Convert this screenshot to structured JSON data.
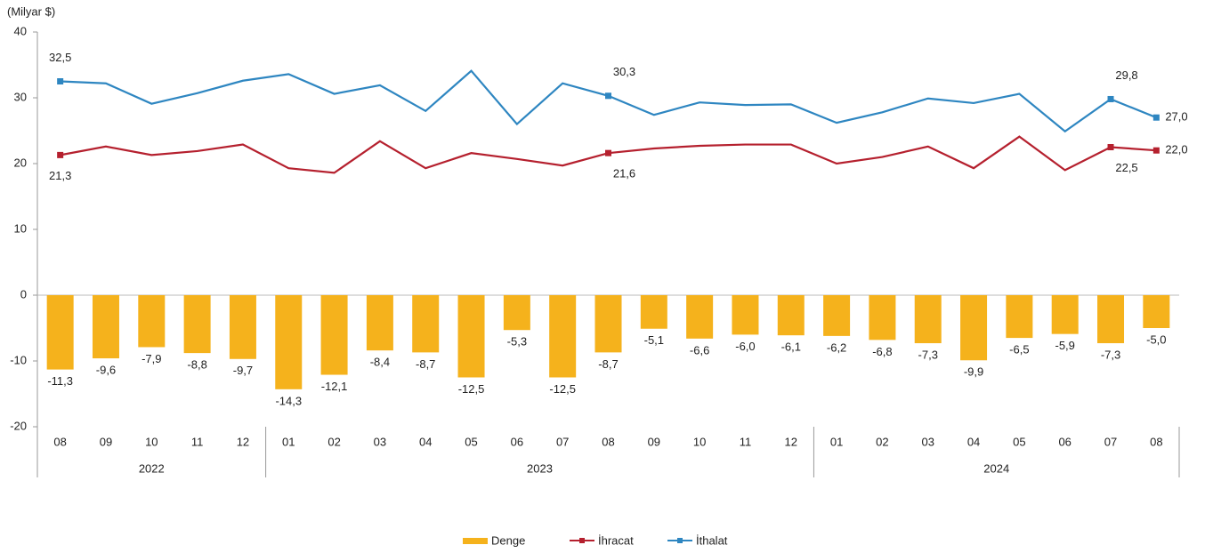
{
  "chart_data": {
    "type": "bar-line",
    "y_label": "(Milyar $)",
    "categories": [
      "08",
      "09",
      "10",
      "11",
      "12",
      "01",
      "02",
      "03",
      "04",
      "05",
      "06",
      "07",
      "08",
      "09",
      "10",
      "11",
      "12",
      "01",
      "02",
      "03",
      "04",
      "05",
      "06",
      "07",
      "08"
    ],
    "groups": [
      {
        "label": "2022",
        "count": 5
      },
      {
        "label": "2023",
        "count": 12
      },
      {
        "label": "2024",
        "count": 8
      }
    ],
    "ylim": [
      -20,
      40
    ],
    "yticks": [
      -20,
      -10,
      0,
      10,
      20,
      30,
      40
    ],
    "series": [
      {
        "name": "Denge",
        "type": "bar",
        "color": "#f5b21c",
        "values": [
          -11.3,
          -9.6,
          -7.9,
          -8.8,
          -9.7,
          -14.3,
          -12.1,
          -8.4,
          -8.7,
          -12.5,
          -5.3,
          -12.5,
          -8.7,
          -5.1,
          -6.6,
          -6.0,
          -6.1,
          -6.2,
          -6.8,
          -7.3,
          -9.9,
          -6.5,
          -5.9,
          -7.3,
          -5.0
        ],
        "value_labels": [
          "-11,3",
          "-9,6",
          "-7,9",
          "-8,8",
          "-9,7",
          "-14,3",
          "-12,1",
          "-8,4",
          "-8,7",
          "-12,5",
          "-5,3",
          "-12,5",
          "-8,7",
          "-5,1",
          "-6,6",
          "-6,0",
          "-6,1",
          "-6,2",
          "-6,8",
          "-7,3",
          "-9,9",
          "-6,5",
          "-5,9",
          "-7,3",
          "-5,0"
        ]
      },
      {
        "name": "İhracat",
        "type": "line",
        "color": "#b5202e",
        "values": [
          21.3,
          22.6,
          21.3,
          21.9,
          22.9,
          19.3,
          18.6,
          23.4,
          19.3,
          21.6,
          20.7,
          19.7,
          21.6,
          22.3,
          22.7,
          22.9,
          22.9,
          20.0,
          21.0,
          22.6,
          19.3,
          24.1,
          19.0,
          22.5,
          22.0
        ],
        "value_labels": [
          "21,3",
          null,
          null,
          null,
          null,
          null,
          null,
          null,
          null,
          null,
          null,
          null,
          "21,6",
          null,
          null,
          null,
          null,
          null,
          null,
          null,
          null,
          null,
          null,
          "22,5",
          "22,0"
        ]
      },
      {
        "name": "İthalat",
        "type": "line",
        "color": "#2e86c1",
        "values": [
          32.5,
          32.2,
          29.1,
          30.7,
          32.6,
          33.6,
          30.6,
          31.9,
          28.0,
          34.1,
          26.0,
          32.2,
          30.3,
          27.4,
          29.3,
          28.9,
          29.0,
          26.2,
          27.8,
          29.9,
          29.2,
          30.6,
          24.9,
          29.8,
          27.0
        ],
        "value_labels": [
          "32,5",
          null,
          null,
          null,
          null,
          null,
          null,
          null,
          null,
          null,
          null,
          null,
          "30,3",
          null,
          null,
          null,
          null,
          null,
          null,
          null,
          null,
          null,
          null,
          "29,8",
          "27,0"
        ]
      }
    ]
  }
}
